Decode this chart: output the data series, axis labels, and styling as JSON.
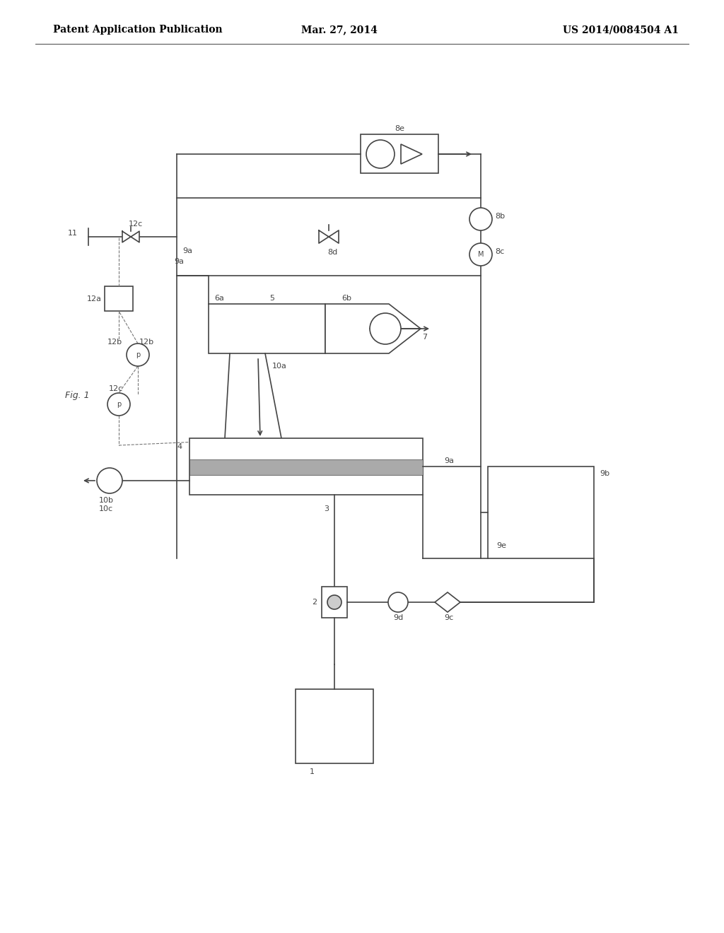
{
  "background_color": "#ffffff",
  "header_left": "Patent Application Publication",
  "header_center": "Mar. 27, 2014",
  "header_right": "US 2014/0084504 A1",
  "fig_label": "Fig. 1",
  "lc": "#444444",
  "lw": 1.2,
  "tlw": 0.8
}
